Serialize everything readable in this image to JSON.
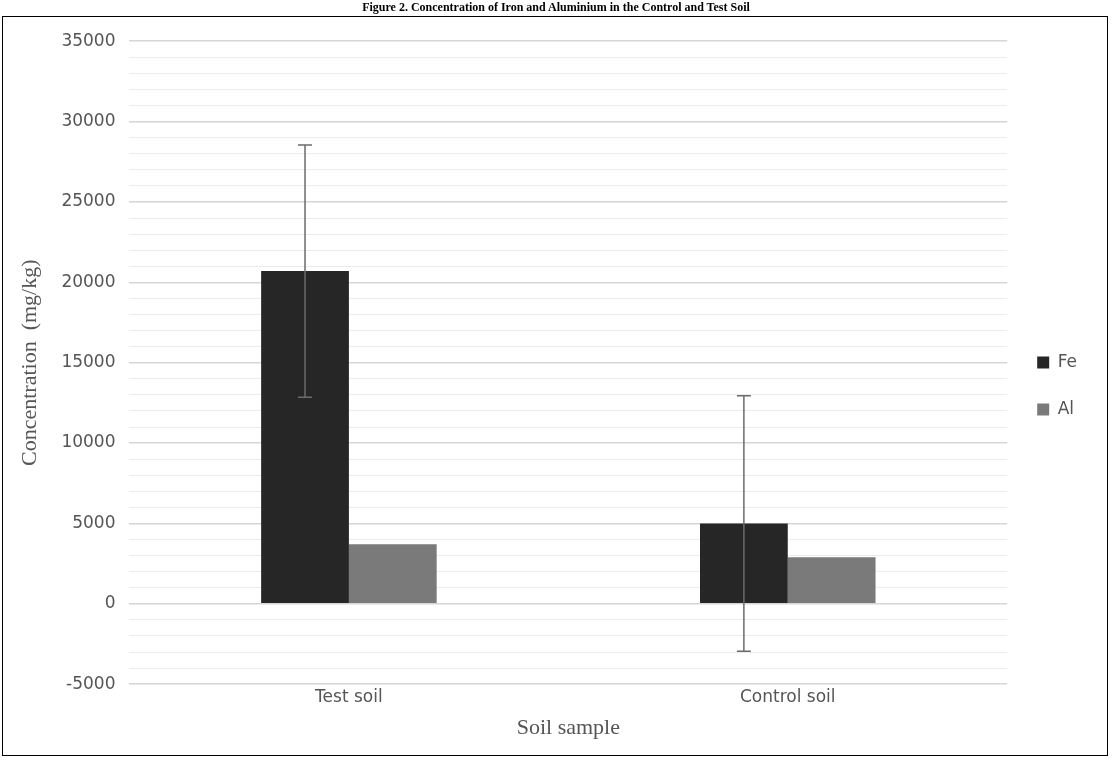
{
  "chart_data": {
    "type": "bar",
    "title": "Figure 2. Concentration of Iron and Aluminium in the Control and Test Soil",
    "xlabel": "Soil sample",
    "ylabel": "Concentration  (mg/kg)",
    "categories": [
      "Test soil",
      "Control soil"
    ],
    "series": [
      {
        "name": "Fe",
        "color": "#262626",
        "values": [
          20700,
          5000
        ],
        "errors": [
          7850,
          7950
        ]
      },
      {
        "name": "Al",
        "color": "#7a7a7a",
        "values": [
          3700,
          2900
        ]
      }
    ],
    "ylim": [
      -5000,
      35000
    ],
    "yticks": [
      -5000,
      {
        "value": -4000,
        "label": null
      },
      {
        "value": -3000,
        "label": null
      },
      {
        "value": -2000,
        "label": null
      },
      {
        "value": -1000,
        "label": null
      },
      0,
      {
        "value": 1000,
        "label": null
      },
      {
        "value": 2000,
        "label": null
      },
      {
        "value": 3000,
        "label": null
      },
      {
        "value": 4000,
        "label": null
      },
      5000,
      {
        "value": 6000,
        "label": null
      },
      {
        "value": 7000,
        "label": null
      },
      {
        "value": 8000,
        "label": null
      },
      {
        "value": 9000,
        "label": null
      },
      10000,
      {
        "value": 11000,
        "label": null
      },
      {
        "value": 12000,
        "label": null
      },
      {
        "value": 13000,
        "label": null
      },
      {
        "value": 14000,
        "label": null
      },
      15000,
      {
        "value": 16000,
        "label": null
      },
      {
        "value": 17000,
        "label": null
      },
      {
        "value": 18000,
        "label": null
      },
      {
        "value": 19000,
        "label": null
      },
      20000,
      {
        "value": 21000,
        "label": null
      },
      {
        "value": 22000,
        "label": null
      },
      {
        "value": 23000,
        "label": null
      },
      {
        "value": 24000,
        "label": null
      },
      25000,
      {
        "value": 26000,
        "label": null
      },
      {
        "value": 27000,
        "label": null
      },
      {
        "value": 28000,
        "label": null
      },
      {
        "value": 29000,
        "label": null
      },
      30000,
      {
        "value": 31000,
        "label": null
      },
      {
        "value": 32000,
        "label": null
      },
      {
        "value": 33000,
        "label": null
      },
      {
        "value": 34000,
        "label": null
      },
      35000
    ],
    "grid": "y",
    "legend": "right"
  }
}
